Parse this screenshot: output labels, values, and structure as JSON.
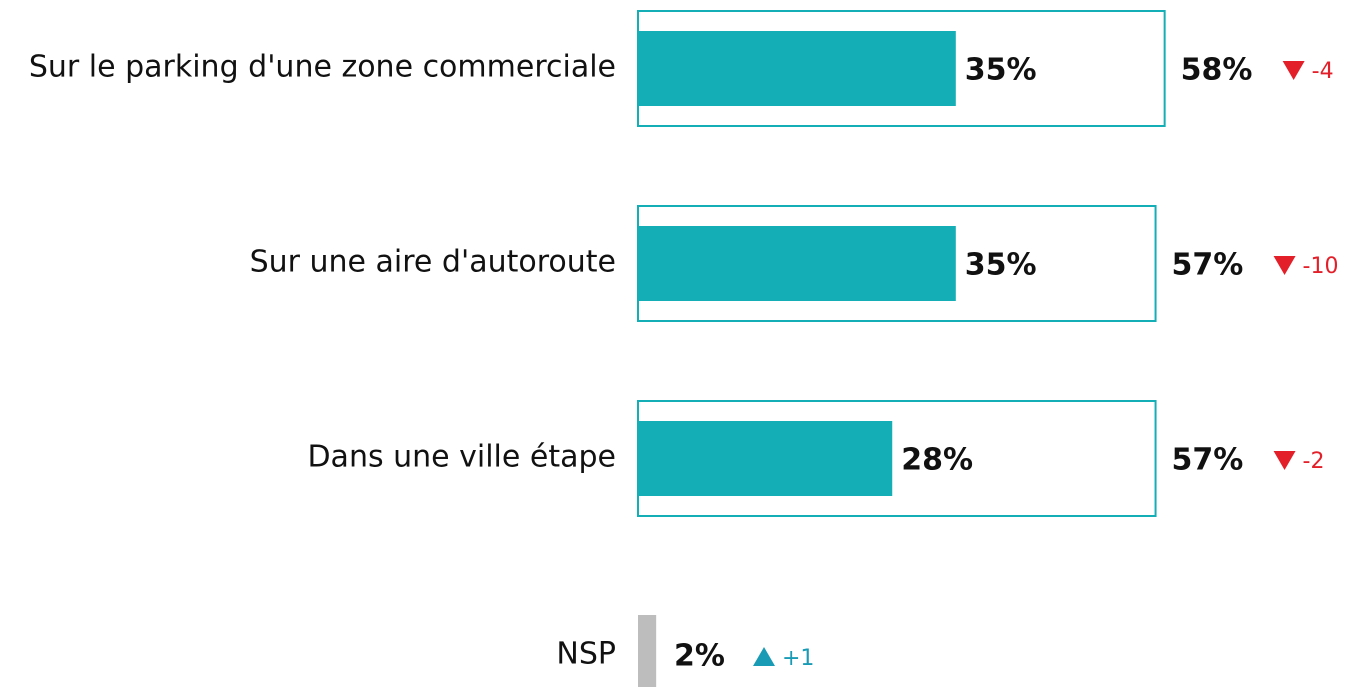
{
  "chart_data": {
    "type": "bar",
    "categories": [
      "Sur le parking d'une zone commerciale",
      "Sur une aire d'autoroute",
      "Dans une ville étape"
    ],
    "series": [
      {
        "color": "#14aeb6",
        "values": [
          35,
          35,
          28
        ],
        "value_labels": [
          "35%",
          "35%",
          "28%"
        ]
      },
      {
        "color": "#14aeb6",
        "values": [
          58,
          57,
          57
        ],
        "value_labels": [
          "58%",
          "57%",
          "57%"
        ]
      }
    ],
    "changes": {
      "values": [
        -4,
        -10,
        -2
      ],
      "down_color": "#e3202a",
      "up_color": "#1a9bb5"
    },
    "nsp": {
      "label": "NSP",
      "value": 2,
      "value_label": "2%",
      "change": 1,
      "change_label": "+1",
      "color": "#bdbdbd"
    }
  }
}
